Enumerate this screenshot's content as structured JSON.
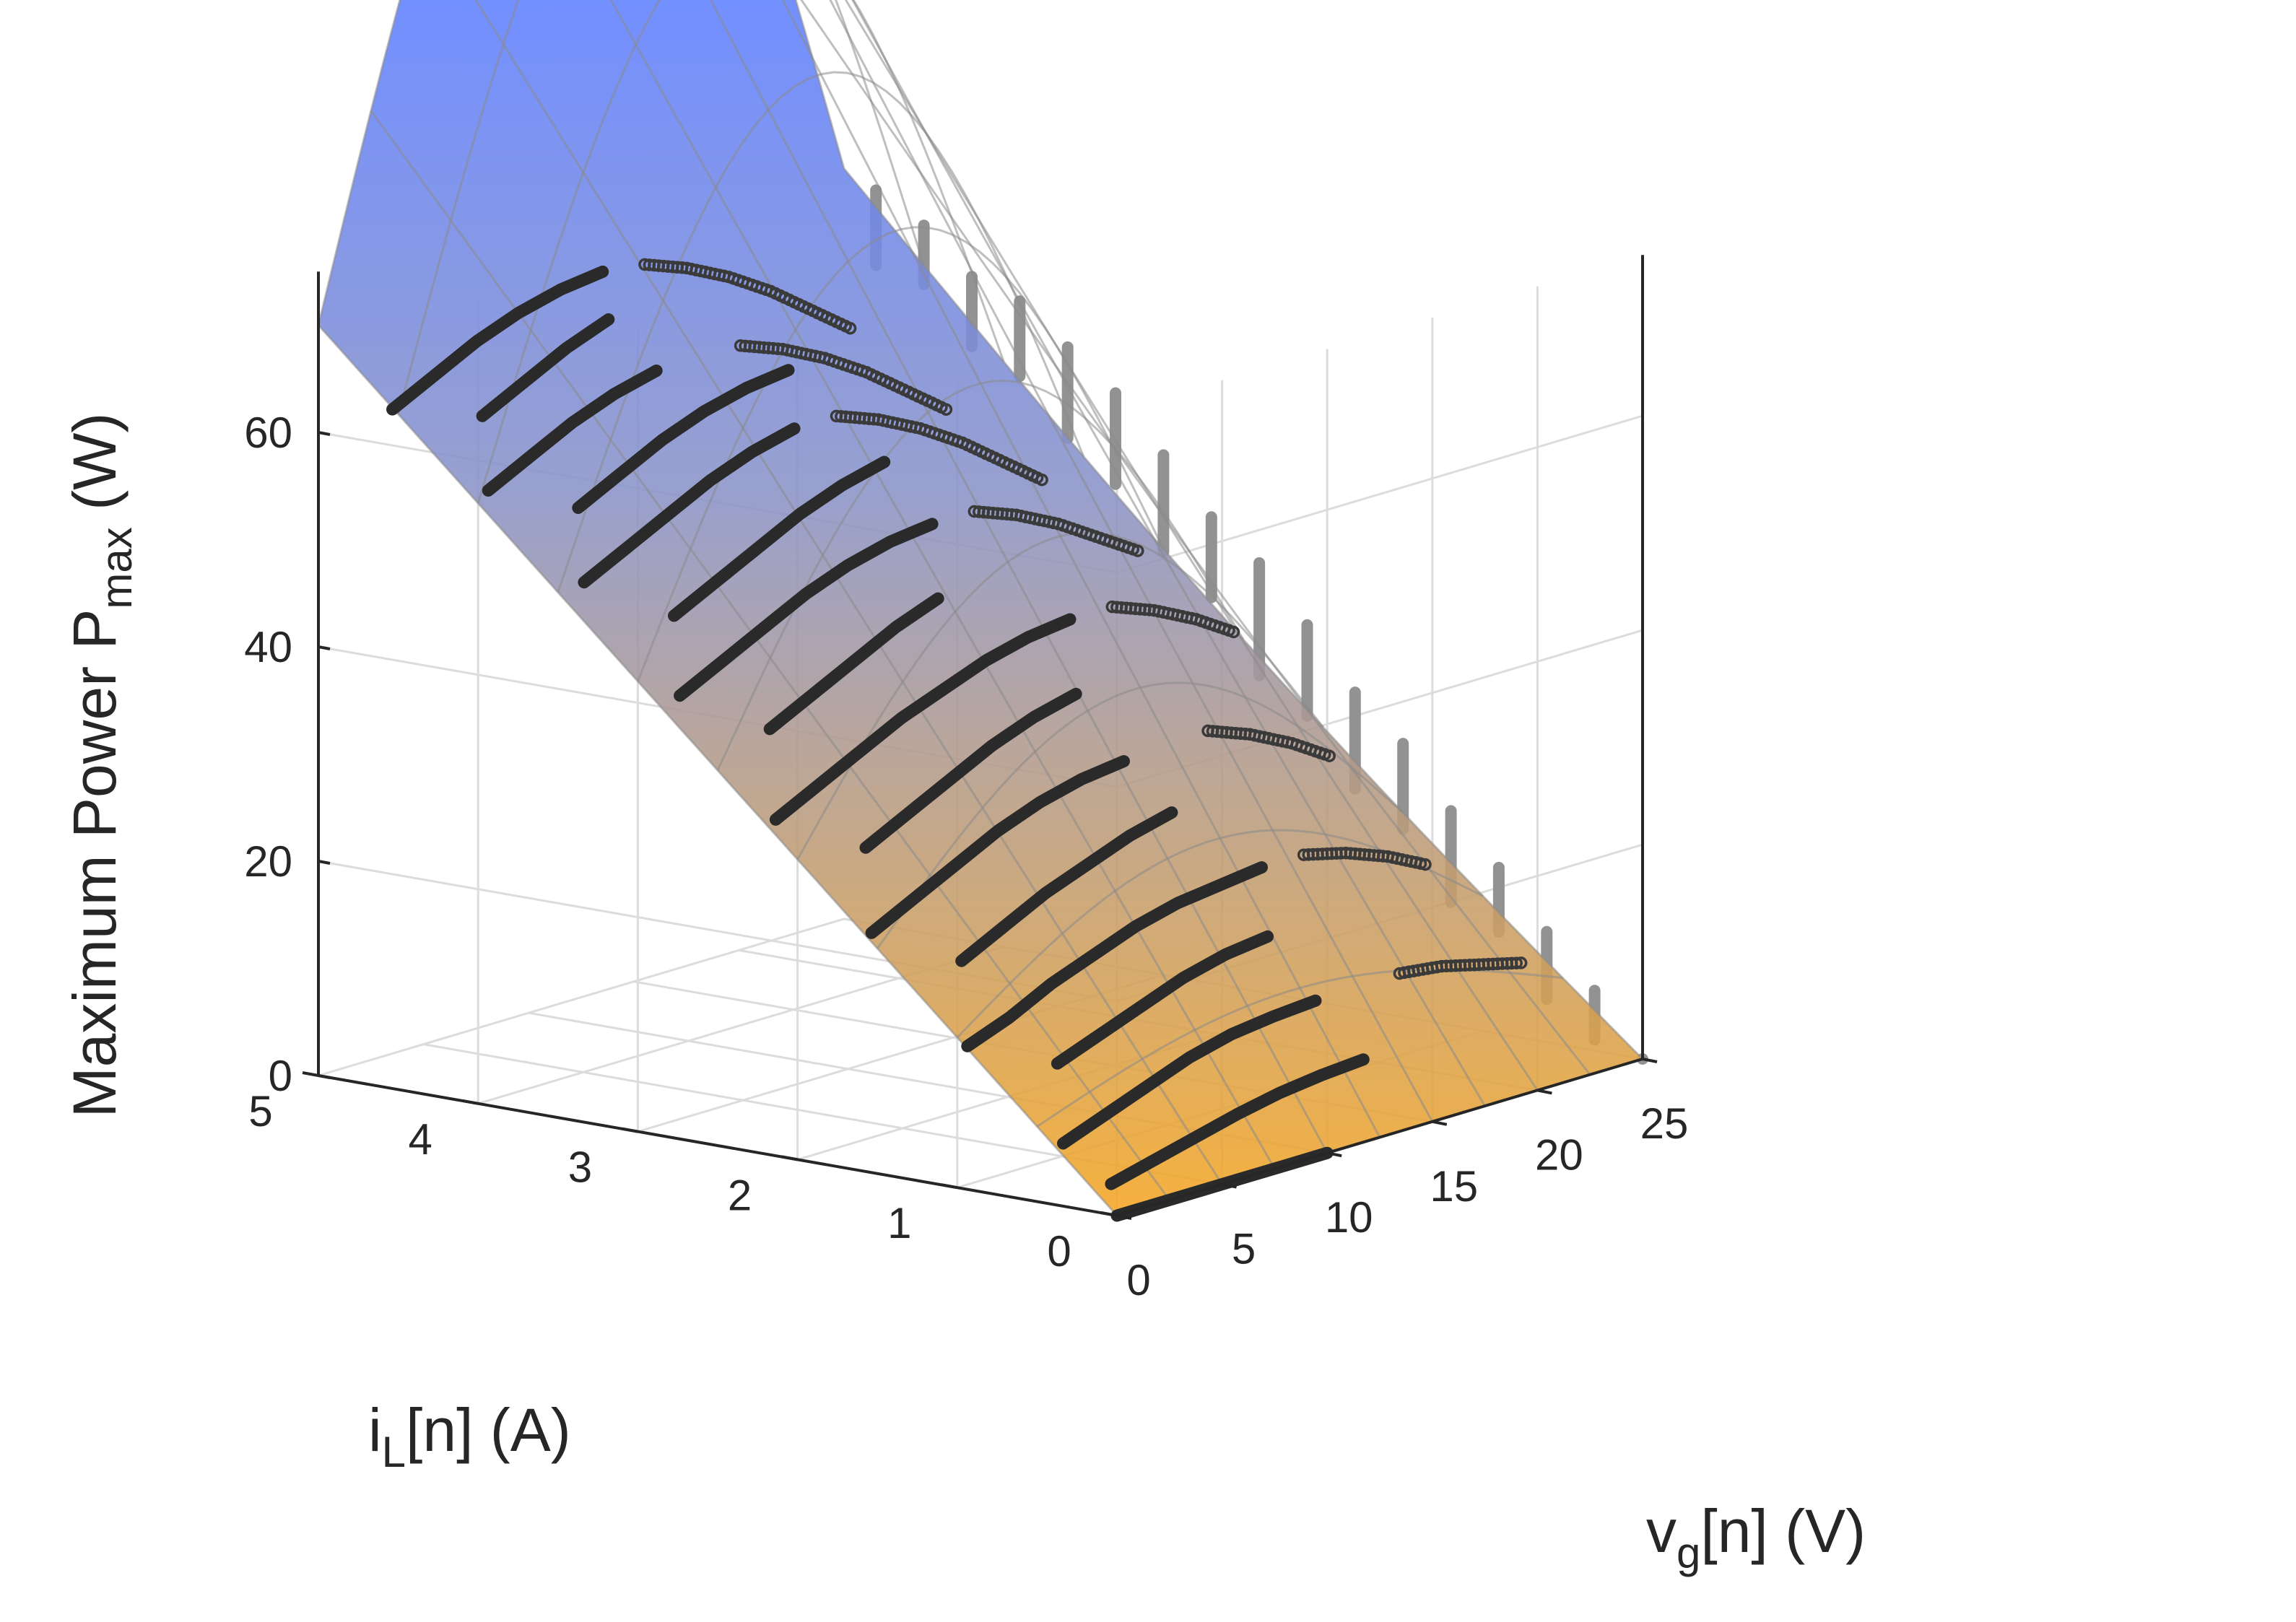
{
  "chart_data": {
    "type": "surface",
    "zlabel": {
      "main": "Maximum Power P",
      "sub": "max",
      "unit": " (W)"
    },
    "ylabel": {
      "main": "i",
      "sub": "L",
      "unit": "[n] (A)"
    },
    "xlabel": {
      "main": "v",
      "sub": "g",
      "unit": "[n] (V)"
    },
    "x": {
      "range": [
        0,
        25
      ],
      "ticks": [
        "0",
        "5",
        "10",
        "15",
        "20",
        "25"
      ]
    },
    "y": {
      "range": [
        0,
        5
      ],
      "ticks": [
        "0",
        "1",
        "2",
        "3",
        "4",
        "5"
      ]
    },
    "z": {
      "range": [
        0,
        75
      ],
      "ticks": [
        "0",
        "20",
        "40",
        "60"
      ]
    },
    "grid": true,
    "colormap": [
      "#f5a623",
      "#8a93c8",
      "#5f80ff",
      "#4f9e8f"
    ],
    "colors": {
      "solid": "#2a2a2a",
      "projection": "#8c8c8c",
      "marker": "#3a3a3a"
    },
    "trajectories": [
      {
        "y": 4.8,
        "x": [
          2,
          4,
          6,
          8,
          10,
          12
        ],
        "z": [
          61.5,
          63.5,
          65.5,
          67.0,
          68.0,
          68.5
        ]
      },
      {
        "y": 4.5,
        "x": [
          4,
          6,
          8,
          10
        ],
        "z": [
          60.5,
          62.5,
          64.5,
          66.0
        ]
      },
      {
        "y": 4.2,
        "x": [
          2,
          4,
          6,
          8,
          10
        ],
        "z": [
          55.5,
          57.5,
          59.5,
          61.0,
          62.0
        ]
      },
      {
        "y": 3.9,
        "x": [
          4,
          6,
          8,
          10,
          12,
          14
        ],
        "z": [
          53.5,
          55.5,
          57.5,
          59.0,
          60.0,
          60.5
        ]
      },
      {
        "y": 3.6,
        "x": [
          2,
          4,
          6,
          8,
          10,
          12
        ],
        "z": [
          48.5,
          50.5,
          52.5,
          54.5,
          56.0,
          57.0
        ]
      },
      {
        "y": 3.3,
        "x": [
          4,
          6,
          8,
          10,
          12,
          14
        ],
        "z": [
          45.0,
          47.0,
          49.0,
          51.0,
          52.5,
          53.5
        ]
      },
      {
        "y": 3.0,
        "x": [
          2,
          4,
          6,
          8,
          10,
          12,
          14
        ],
        "z": [
          39.5,
          41.5,
          43.5,
          45.5,
          47.0,
          48.0,
          48.5
        ]
      },
      {
        "y": 2.7,
        "x": [
          4,
          6,
          8,
          10,
          12
        ],
        "z": [
          36.0,
          38.0,
          40.0,
          42.0,
          43.5
        ]
      },
      {
        "y": 2.4,
        "x": [
          2,
          4,
          6,
          8,
          10,
          12,
          14,
          16
        ],
        "z": [
          29.5,
          31.5,
          33.5,
          35.5,
          37.0,
          38.5,
          39.5,
          40.0
        ]
      },
      {
        "y": 2.1,
        "x": [
          4,
          6,
          8,
          10,
          12,
          14
        ],
        "z": [
          26.5,
          28.5,
          30.5,
          32.5,
          34.0,
          35.0
        ]
      },
      {
        "y": 1.8,
        "x": [
          2,
          4,
          6,
          8,
          10,
          12,
          14
        ],
        "z": [
          20.5,
          22.5,
          24.5,
          26.5,
          28.0,
          29.0,
          29.5
        ]
      },
      {
        "y": 1.5,
        "x": [
          4,
          6,
          8,
          10,
          12,
          14
        ],
        "z": [
          17.5,
          19.5,
          21.5,
          23.0,
          24.5,
          25.5
        ]
      },
      {
        "y": 1.2,
        "x": [
          2,
          4,
          6,
          8,
          10,
          12,
          14,
          16
        ],
        "z": [
          11.5,
          13.0,
          15.0,
          16.5,
          18.0,
          19.0,
          19.5,
          20.0
        ]
      },
      {
        "y": 0.9,
        "x": [
          4,
          6,
          8,
          10,
          12,
          14
        ],
        "z": [
          9.5,
          11.0,
          12.5,
          14.0,
          15.0,
          15.5
        ]
      },
      {
        "y": 0.6,
        "x": [
          2,
          4,
          6,
          8,
          10,
          12,
          14
        ],
        "z": [
          4.0,
          5.5,
          7.0,
          8.5,
          9.5,
          10.0,
          10.3
        ]
      },
      {
        "y": 0.3,
        "x": [
          2,
          4,
          6,
          8,
          10,
          12,
          14
        ],
        "z": [
          1.0,
          2.0,
          3.0,
          4.0,
          4.8,
          5.3,
          5.6
        ]
      },
      {
        "y": 0.0,
        "x": [
          0,
          2,
          4,
          6,
          8,
          10
        ],
        "z": [
          0,
          0,
          0,
          0,
          0,
          0
        ]
      }
    ],
    "marker_tracks": [
      {
        "y": 4.8,
        "x": [
          14,
          16,
          18,
          20,
          22,
          24
        ],
        "z": [
          68.0,
          66.5,
          64.5,
          62.0,
          59.0,
          56.0
        ]
      },
      {
        "y": 4.2,
        "x": [
          14,
          16,
          18,
          20,
          22,
          24
        ],
        "z": [
          62.0,
          60.5,
          58.5,
          56.0,
          53.0,
          50.0
        ]
      },
      {
        "y": 3.6,
        "x": [
          14,
          16,
          18,
          20,
          22,
          24
        ],
        "z": [
          57.0,
          55.5,
          53.5,
          51.0,
          48.0,
          45.0
        ]
      },
      {
        "y": 3.0,
        "x": [
          16,
          18,
          20,
          22,
          24
        ],
        "z": [
          48.5,
          47.0,
          45.0,
          42.5,
          40.0
        ]
      },
      {
        "y": 2.4,
        "x": [
          18,
          20,
          22,
          24
        ],
        "z": [
          40.0,
          38.5,
          36.5,
          34.0
        ]
      },
      {
        "y": 1.8,
        "x": [
          18,
          20,
          22,
          24
        ],
        "z": [
          30.0,
          28.5,
          26.5,
          24.0
        ]
      },
      {
        "y": 1.2,
        "x": [
          18,
          20,
          22,
          24
        ],
        "z": [
          20.0,
          19.0,
          17.5,
          15.5
        ]
      },
      {
        "y": 0.6,
        "x": [
          18,
          20,
          22,
          24
        ],
        "z": [
          10.5,
          10.0,
          9.0,
          8.0
        ]
      }
    ]
  }
}
